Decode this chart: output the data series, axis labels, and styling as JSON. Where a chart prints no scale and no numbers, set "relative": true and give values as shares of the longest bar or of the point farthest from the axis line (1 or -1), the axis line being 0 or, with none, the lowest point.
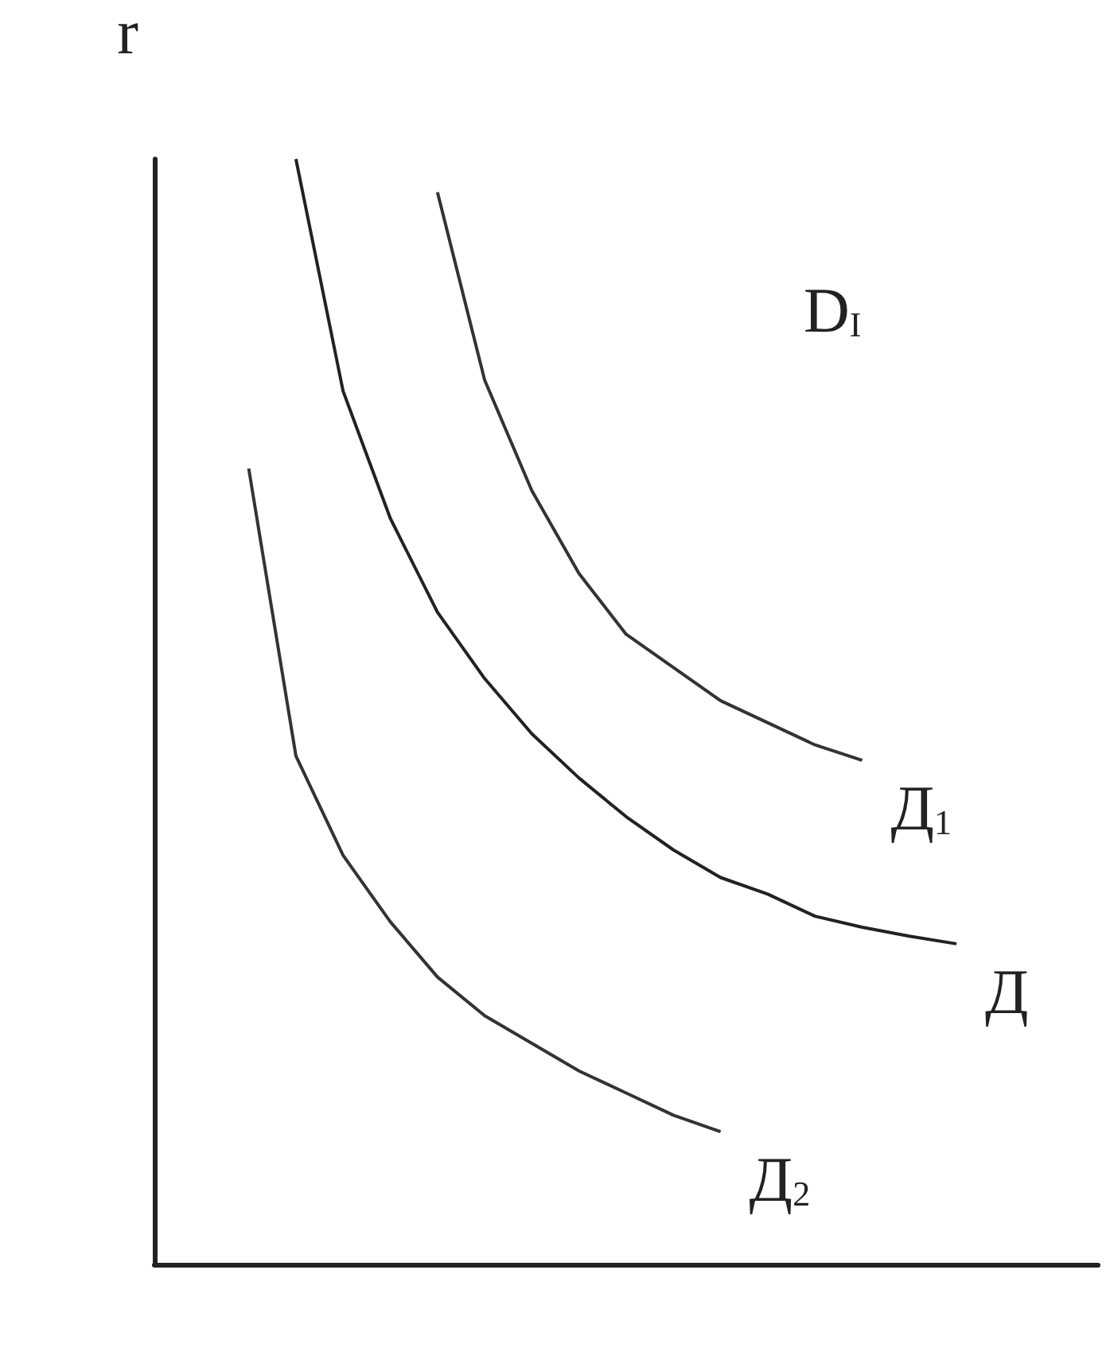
{
  "chart_data": {
    "type": "line",
    "relative": true,
    "ylabel": "r",
    "annotations": [
      "D$_{I}$"
    ],
    "tick_labels": false,
    "marker": "none",
    "line_style": "solid",
    "categories": [
      null,
      null,
      null,
      null,
      null,
      null,
      null,
      null,
      null,
      null,
      null,
      null,
      null,
      null,
      null,
      null,
      null,
      null,
      null,
      null,
      null
    ],
    "series": [
      {
        "name": "Д$_{1}$",
        "color": "#333333",
        "values": [
          null,
          null,
          null,
          null,
          null,
          null,
          0.97,
          0.8,
          0.7,
          0.625,
          0.57,
          0.54,
          0.51,
          0.49,
          0.47,
          0.456,
          null,
          null,
          null,
          null,
          null
        ]
      },
      {
        "name": "Д",
        "color": "#222222",
        "values": [
          null,
          null,
          null,
          1,
          0.79,
          0.675,
          0.59,
          0.53,
          0.48,
          0.44,
          0.405,
          0.375,
          0.35,
          0.335,
          0.315,
          0.305,
          0.297,
          0.29,
          null,
          null,
          null
        ]
      },
      {
        "name": "Д$_{2}$",
        "color": "#333333",
        "values": [
          null,
          null,
          0.72,
          0.46,
          0.37,
          0.31,
          0.26,
          0.225,
          0.2,
          0.175,
          0.155,
          0.135,
          0.12,
          null,
          null,
          null,
          null,
          null,
          null,
          null,
          null
        ]
      }
    ]
  }
}
